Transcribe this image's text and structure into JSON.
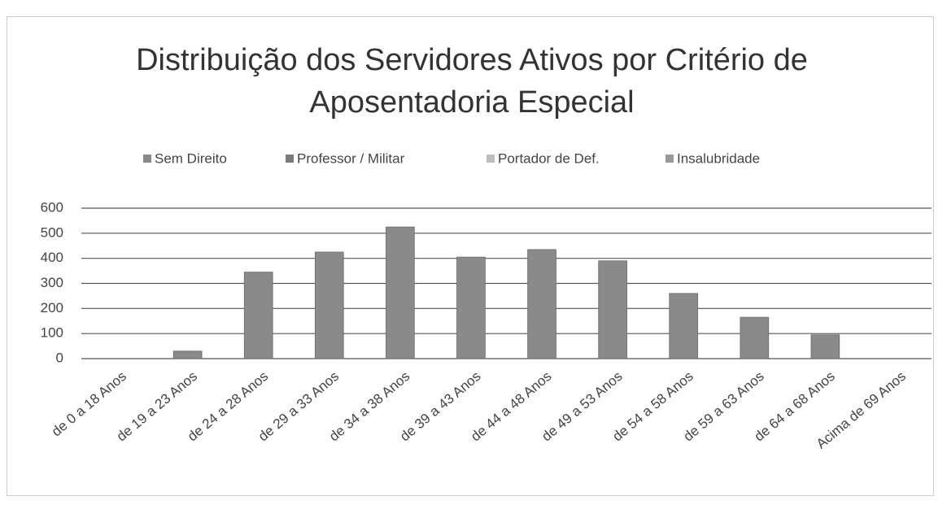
{
  "chart_data": {
    "type": "stacked_bar",
    "title": "Distribuição dos Servidores Ativos por Critério de Aposentadoria Especial",
    "categories": [
      "de 0 a 18 Anos",
      "de 19 a 23 Anos",
      "de 24 a 28 Anos",
      "de 29 a 33 Anos",
      "de 34 a 38 Anos",
      "de 39 a 43 Anos",
      "de 44 a 48 Anos",
      "de 49 a 53 Anos",
      "de 54 a 58 Anos",
      "de 59 a 63 Anos",
      "de 64 a 68 Anos",
      "Acima de 69 Anos"
    ],
    "series": [
      {
        "name": "Sem Direito",
        "color": "#8a8a8a",
        "values": [
          0,
          30,
          345,
          425,
          525,
          405,
          435,
          390,
          260,
          165,
          95,
          0
        ]
      },
      {
        "name": "Professor / Militar",
        "color": "#7a7a7a",
        "values": [
          0,
          0,
          0,
          0,
          0,
          0,
          0,
          0,
          0,
          0,
          0,
          0
        ]
      },
      {
        "name": "Portador de Def.",
        "color": "#bdbdbd",
        "values": [
          0,
          0,
          0,
          0,
          0,
          0,
          0,
          0,
          0,
          0,
          0,
          0
        ]
      },
      {
        "name": "Insalubridade",
        "color": "#9a9a9a",
        "values": [
          0,
          0,
          0,
          0,
          0,
          0,
          0,
          0,
          0,
          0,
          0,
          0
        ]
      }
    ],
    "ylim": [
      0,
      600
    ],
    "yticks": [
      0,
      100,
      200,
      300,
      400,
      500,
      600
    ],
    "grid": true,
    "legend": "top"
  }
}
